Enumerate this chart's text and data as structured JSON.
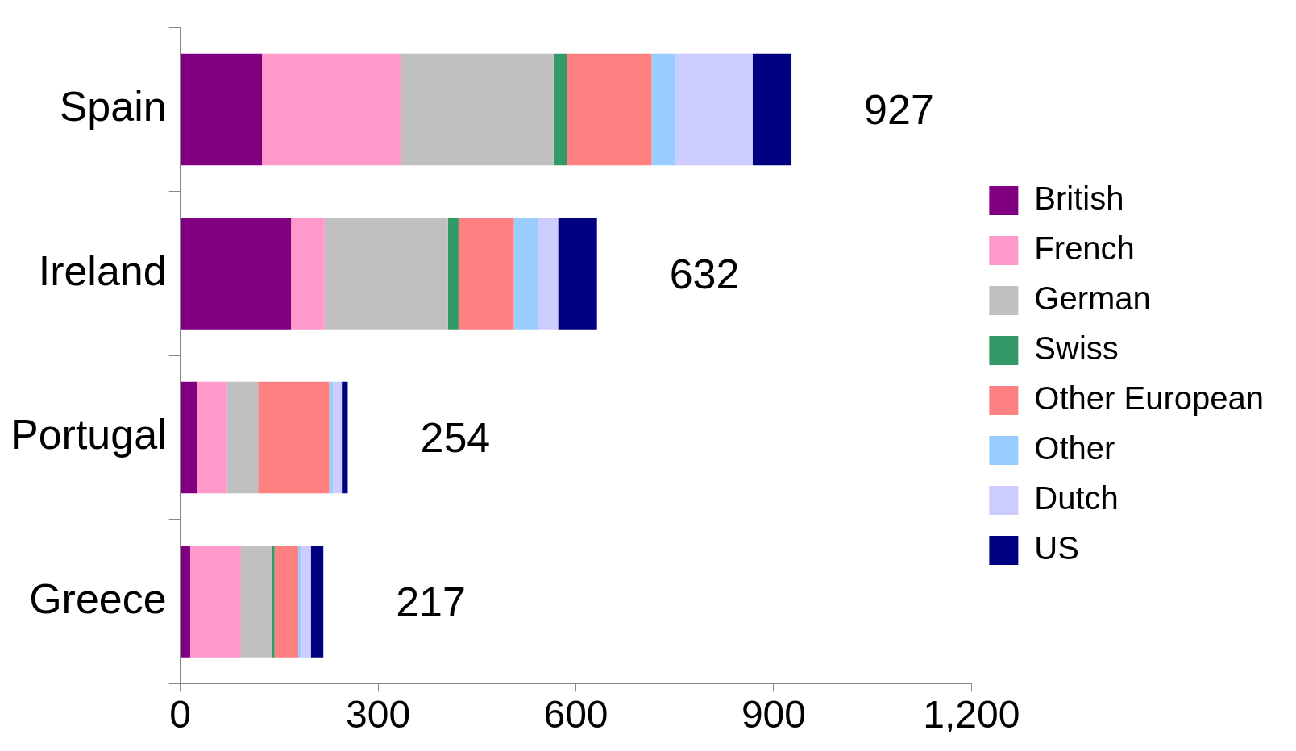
{
  "chart_data": {
    "type": "bar",
    "orientation": "horizontal",
    "stacked": true,
    "categories": [
      "Spain",
      "Ireland",
      "Portugal",
      "Greece"
    ],
    "series": [
      {
        "name": "British",
        "color": "#800080",
        "values": [
          124,
          168,
          25,
          15
        ]
      },
      {
        "name": "French",
        "color": "#ff99cc",
        "values": [
          211,
          51,
          46,
          77
        ]
      },
      {
        "name": "German",
        "color": "#c0c0c0",
        "values": [
          231,
          187,
          47,
          46
        ]
      },
      {
        "name": "Swiss",
        "color": "#339966",
        "values": [
          21,
          16,
          0,
          5
        ]
      },
      {
        "name": "Other European",
        "color": "#ff8080",
        "values": [
          128,
          84,
          108,
          36
        ]
      },
      {
        "name": "Other",
        "color": "#99ccff",
        "values": [
          36,
          37,
          6,
          5
        ]
      },
      {
        "name": "Dutch",
        "color": "#ccccff",
        "values": [
          117,
          30,
          13,
          14
        ]
      },
      {
        "name": "US",
        "color": "#000080",
        "values": [
          59,
          59,
          9,
          19
        ]
      }
    ],
    "totals": [
      "927",
      "632",
      "254",
      "217"
    ],
    "xlim": [
      0,
      1200
    ],
    "xticks": [
      0,
      300,
      600,
      900,
      {
        "value": 1200,
        "label": "1,200"
      }
    ],
    "grid": false,
    "legend": "right"
  }
}
